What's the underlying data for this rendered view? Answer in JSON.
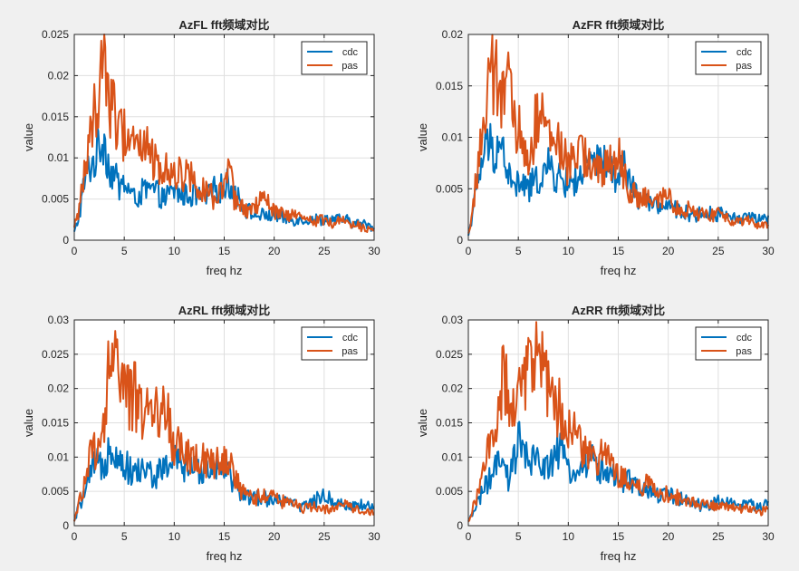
{
  "colors": {
    "figure_bg": "#f0f0f0",
    "axes_bg": "#ffffff",
    "grid": "#dfdfdf",
    "axis": "#262626",
    "cdc": "#0072BD",
    "pas": "#D95319"
  },
  "chart_data": [
    {
      "type": "line",
      "title": "AzFL fft频域对比",
      "xlabel": "freq hz",
      "ylabel": "value",
      "xlim": [
        0,
        30
      ],
      "ylim": [
        0,
        0.025
      ],
      "xticks": [
        0,
        5,
        10,
        15,
        20,
        25,
        30
      ],
      "yticks": [
        0,
        0.005,
        0.01,
        0.015,
        0.02,
        0.025
      ],
      "ytick_labels": [
        "0",
        "0.005",
        "0.01",
        "0.015",
        "0.02",
        "0.025"
      ],
      "grid": true,
      "legend": "top-right",
      "series": [
        {
          "name": "cdc",
          "color": "#0072BD",
          "x": [
            0,
            0.5,
            1,
            1.5,
            2,
            2.5,
            3,
            3.5,
            4,
            4.5,
            5,
            6,
            7,
            8,
            9,
            10,
            11,
            12,
            13,
            14,
            15,
            15.5,
            16,
            17,
            18,
            19,
            20,
            21,
            22,
            23,
            24,
            25,
            26,
            27,
            28,
            29,
            30
          ],
          "values": [
            0.001,
            0.003,
            0.007,
            0.009,
            0.0095,
            0.0115,
            0.0125,
            0.0085,
            0.008,
            0.0065,
            0.007,
            0.005,
            0.006,
            0.006,
            0.005,
            0.006,
            0.0055,
            0.0055,
            0.005,
            0.006,
            0.0065,
            0.007,
            0.006,
            0.004,
            0.003,
            0.003,
            0.003,
            0.0025,
            0.0025,
            0.0025,
            0.0025,
            0.0025,
            0.0025,
            0.0025,
            0.002,
            0.002,
            0.0015
          ]
        },
        {
          "name": "pas",
          "color": "#D95319",
          "x": [
            0,
            0.5,
            1,
            1.5,
            2,
            2.5,
            3,
            3.5,
            4,
            4.5,
            5,
            6,
            7,
            8,
            9,
            10,
            11,
            12,
            13,
            14,
            15,
            15.5,
            16,
            17,
            18,
            19,
            20,
            21,
            22,
            23,
            24,
            25,
            26,
            27,
            28,
            29,
            30
          ],
          "values": [
            0.0015,
            0.004,
            0.0085,
            0.011,
            0.016,
            0.018,
            0.0235,
            0.017,
            0.0155,
            0.013,
            0.013,
            0.0125,
            0.0115,
            0.0095,
            0.0085,
            0.0085,
            0.008,
            0.0075,
            0.006,
            0.005,
            0.006,
            0.0085,
            0.005,
            0.0035,
            0.004,
            0.005,
            0.0035,
            0.003,
            0.003,
            0.0025,
            0.0025,
            0.0025,
            0.002,
            0.0025,
            0.002,
            0.0015,
            0.0015
          ]
        }
      ]
    },
    {
      "type": "line",
      "title": "AzFR fft频域对比",
      "xlabel": "freq hz",
      "ylabel": "value",
      "xlim": [
        0,
        30
      ],
      "ylim": [
        0,
        0.02
      ],
      "xticks": [
        0,
        5,
        10,
        15,
        20,
        25,
        30
      ],
      "yticks": [
        0,
        0.005,
        0.01,
        0.015,
        0.02
      ],
      "ytick_labels": [
        "0",
        "0.005",
        "0.01",
        "0.015",
        "0.02"
      ],
      "grid": true,
      "legend": "top-right",
      "series": [
        {
          "name": "cdc",
          "color": "#0072BD",
          "x": [
            0,
            0.5,
            1,
            1.5,
            2,
            2.5,
            3,
            3.5,
            4,
            4.5,
            5,
            6,
            7,
            8,
            9,
            10,
            11,
            12,
            13,
            14,
            15,
            15.5,
            16,
            17,
            18,
            19,
            20,
            21,
            22,
            23,
            24,
            25,
            26,
            27,
            28,
            29,
            30
          ],
          "values": [
            0.0005,
            0.003,
            0.006,
            0.008,
            0.0095,
            0.0085,
            0.0095,
            0.0085,
            0.0065,
            0.005,
            0.0055,
            0.005,
            0.006,
            0.007,
            0.006,
            0.0055,
            0.006,
            0.007,
            0.0075,
            0.007,
            0.006,
            0.0075,
            0.006,
            0.004,
            0.0035,
            0.0035,
            0.003,
            0.003,
            0.0025,
            0.0025,
            0.0025,
            0.0025,
            0.0025,
            0.002,
            0.0025,
            0.002,
            0.002
          ]
        },
        {
          "name": "pas",
          "color": "#D95319",
          "x": [
            0,
            0.5,
            1,
            1.5,
            2,
            2.5,
            3,
            3.5,
            4,
            4.5,
            5,
            6,
            7,
            8,
            9,
            10,
            11,
            12,
            13,
            14,
            15,
            15.5,
            16,
            17,
            18,
            19,
            20,
            21,
            22,
            23,
            24,
            25,
            26,
            27,
            28,
            29,
            30
          ],
          "values": [
            0.0005,
            0.0035,
            0.0075,
            0.011,
            0.0145,
            0.016,
            0.015,
            0.0145,
            0.0155,
            0.011,
            0.0105,
            0.008,
            0.0125,
            0.01,
            0.0095,
            0.007,
            0.0085,
            0.008,
            0.0065,
            0.007,
            0.0085,
            0.0065,
            0.005,
            0.004,
            0.004,
            0.0035,
            0.0045,
            0.003,
            0.003,
            0.0025,
            0.0025,
            0.0025,
            0.002,
            0.002,
            0.002,
            0.0015,
            0.0015
          ]
        }
      ]
    },
    {
      "type": "line",
      "title": "AzRL fft频域对比",
      "xlabel": "freq hz",
      "ylabel": "value",
      "xlim": [
        0,
        30
      ],
      "ylim": [
        0,
        0.03
      ],
      "xticks": [
        0,
        5,
        10,
        15,
        20,
        25,
        30
      ],
      "yticks": [
        0,
        0.005,
        0.01,
        0.015,
        0.02,
        0.025,
        0.03
      ],
      "ytick_labels": [
        "0",
        "0.005",
        "0.01",
        "0.015",
        "0.02",
        "0.025",
        "0.03"
      ],
      "grid": true,
      "legend": "top-right",
      "series": [
        {
          "name": "cdc",
          "color": "#0072BD",
          "x": [
            0,
            0.5,
            1,
            1.5,
            2,
            2.5,
            3,
            3.5,
            4,
            4.5,
            5,
            6,
            7,
            8,
            9,
            10,
            11,
            12,
            13,
            14,
            15,
            15.5,
            16,
            17,
            18,
            19,
            20,
            21,
            22,
            23,
            24,
            25,
            26,
            27,
            28,
            29,
            30
          ],
          "values": [
            0.0005,
            0.003,
            0.0045,
            0.0065,
            0.009,
            0.0085,
            0.009,
            0.012,
            0.0115,
            0.0095,
            0.009,
            0.0075,
            0.0085,
            0.007,
            0.0085,
            0.0095,
            0.0085,
            0.008,
            0.0085,
            0.0085,
            0.0095,
            0.0075,
            0.006,
            0.0045,
            0.004,
            0.004,
            0.004,
            0.0035,
            0.003,
            0.003,
            0.0035,
            0.0045,
            0.0035,
            0.003,
            0.003,
            0.003,
            0.0025
          ]
        },
        {
          "name": "pas",
          "color": "#D95319",
          "x": [
            0,
            0.5,
            1,
            1.5,
            2,
            2.5,
            3,
            3.5,
            4,
            4.5,
            5,
            6,
            7,
            8,
            9,
            10,
            11,
            12,
            13,
            14,
            15,
            15.5,
            16,
            17,
            18,
            19,
            20,
            21,
            22,
            23,
            24,
            25,
            26,
            27,
            28,
            29,
            30
          ],
          "values": [
            0.0005,
            0.0035,
            0.006,
            0.0105,
            0.011,
            0.0105,
            0.015,
            0.026,
            0.022,
            0.0255,
            0.0185,
            0.019,
            0.0165,
            0.0165,
            0.0175,
            0.012,
            0.0105,
            0.0095,
            0.0095,
            0.0085,
            0.0105,
            0.0095,
            0.007,
            0.0045,
            0.004,
            0.0045,
            0.004,
            0.0035,
            0.003,
            0.0025,
            0.003,
            0.0025,
            0.0025,
            0.003,
            0.0025,
            0.002,
            0.002
          ]
        }
      ]
    },
    {
      "type": "line",
      "title": "AzRR fft频域对比",
      "xlabel": "freq hz",
      "ylabel": "value",
      "xlim": [
        0,
        30
      ],
      "ylim": [
        0,
        0.03
      ],
      "xticks": [
        0,
        5,
        10,
        15,
        20,
        25,
        30
      ],
      "yticks": [
        0,
        0.005,
        0.01,
        0.015,
        0.02,
        0.025,
        0.03
      ],
      "ytick_labels": [
        "0",
        "0.005",
        "0.01",
        "0.015",
        "0.02",
        "0.025",
        "0.03"
      ],
      "grid": true,
      "legend": "top-right",
      "series": [
        {
          "name": "cdc",
          "color": "#0072BD",
          "x": [
            0,
            0.5,
            1,
            1.5,
            2,
            2.5,
            3,
            3.5,
            4,
            4.5,
            5,
            6,
            7,
            8,
            9,
            10,
            11,
            12,
            13,
            14,
            15,
            15.5,
            16,
            17,
            18,
            19,
            20,
            21,
            22,
            23,
            24,
            25,
            26,
            27,
            28,
            29,
            30
          ],
          "values": [
            0.0005,
            0.002,
            0.004,
            0.005,
            0.0065,
            0.0075,
            0.009,
            0.0085,
            0.0065,
            0.009,
            0.0125,
            0.009,
            0.0095,
            0.0085,
            0.011,
            0.0085,
            0.0075,
            0.01,
            0.0085,
            0.0075,
            0.0065,
            0.006,
            0.0065,
            0.0055,
            0.005,
            0.0045,
            0.0045,
            0.004,
            0.0035,
            0.003,
            0.003,
            0.0035,
            0.0035,
            0.003,
            0.003,
            0.003,
            0.003
          ]
        },
        {
          "name": "pas",
          "color": "#D95319",
          "x": [
            0,
            0.5,
            1,
            1.5,
            2,
            2.5,
            3,
            3.5,
            4,
            4.5,
            5,
            6,
            7,
            8,
            9,
            10,
            11,
            12,
            13,
            14,
            15,
            15.5,
            16,
            17,
            18,
            19,
            20,
            21,
            22,
            23,
            24,
            25,
            26,
            27,
            28,
            29,
            30
          ],
          "values": [
            0.0005,
            0.003,
            0.0045,
            0.0085,
            0.0105,
            0.0125,
            0.0155,
            0.0245,
            0.018,
            0.0175,
            0.021,
            0.0235,
            0.024,
            0.0195,
            0.0175,
            0.0135,
            0.0125,
            0.011,
            0.01,
            0.0095,
            0.0075,
            0.007,
            0.0065,
            0.0055,
            0.006,
            0.0045,
            0.0045,
            0.004,
            0.0035,
            0.003,
            0.003,
            0.003,
            0.003,
            0.0025,
            0.0025,
            0.002,
            0.0025
          ]
        }
      ]
    }
  ]
}
